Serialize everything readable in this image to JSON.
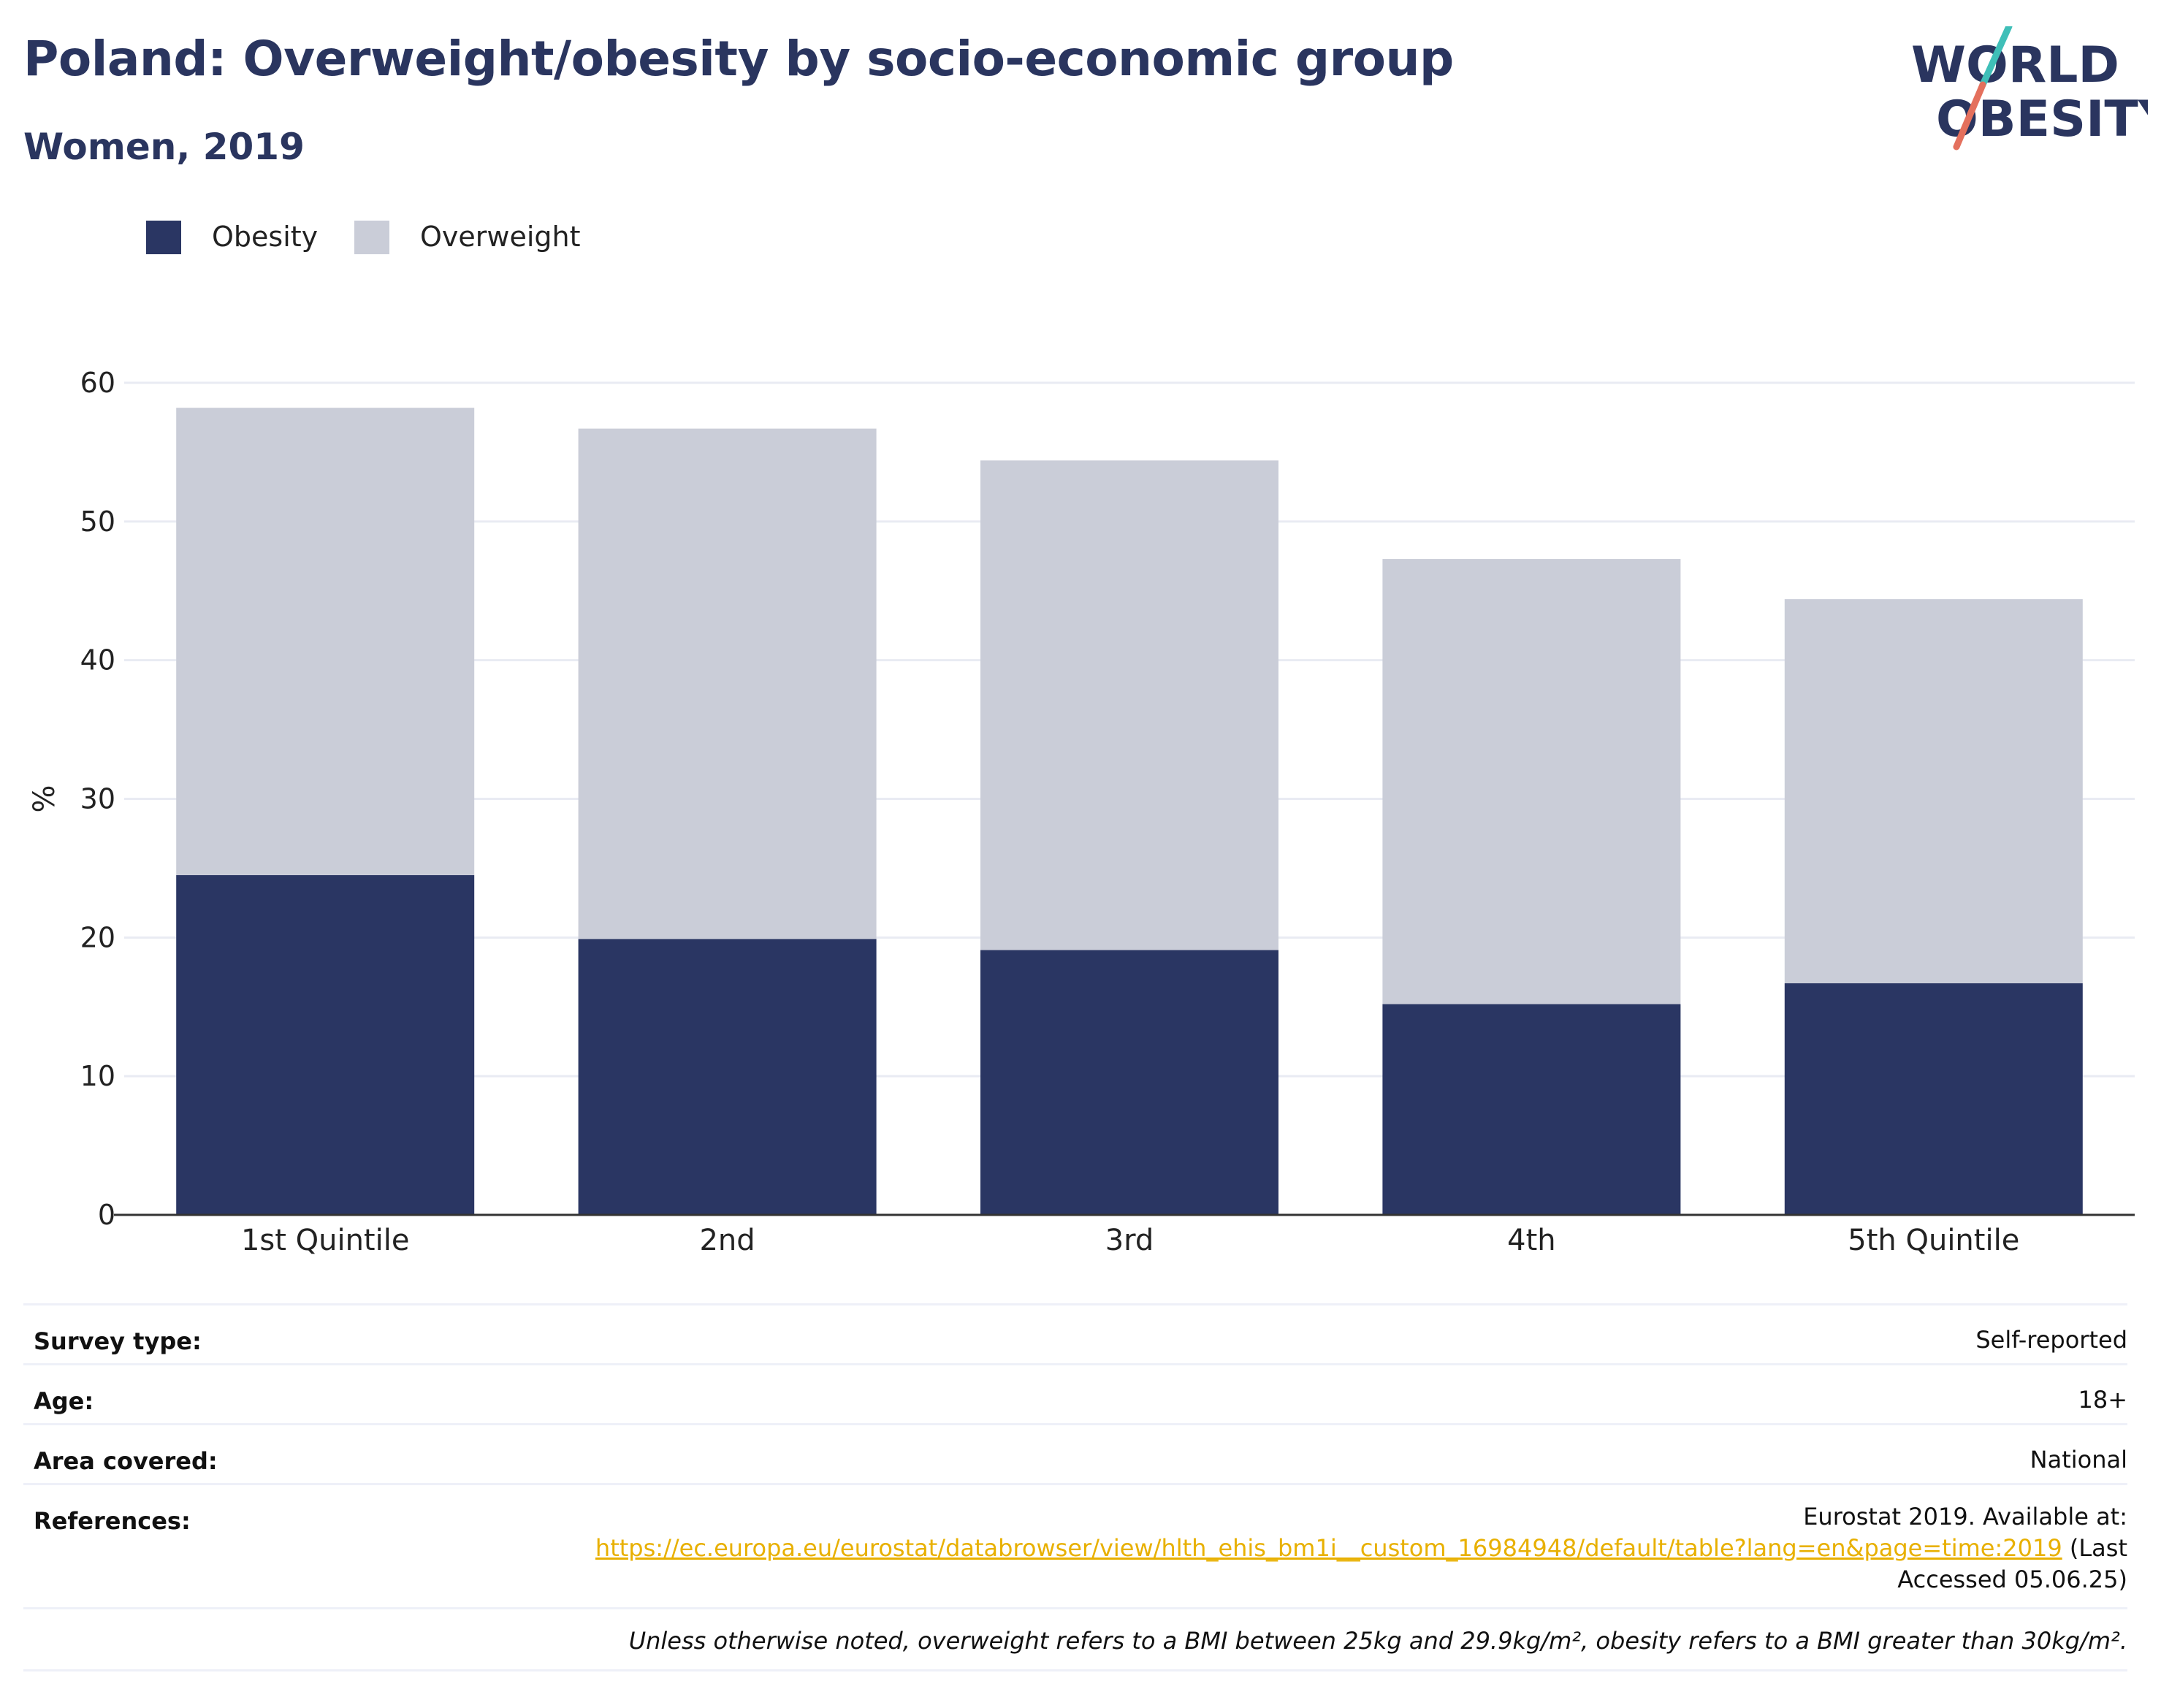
{
  "header": {
    "title": "Poland: Overweight/obesity by socio-economic group",
    "subtitle": "Women, 2019"
  },
  "logo": {
    "line1": "WORLD",
    "line2": "OBESITY"
  },
  "legend": [
    {
      "label": "Obesity",
      "color": "#2a3663"
    },
    {
      "label": "Overweight",
      "color": "#cacdd8"
    }
  ],
  "chart_data": {
    "type": "bar",
    "stacked": true,
    "categories": [
      "1st Quintile",
      "2nd",
      "3rd",
      "4th",
      "5th Quintile"
    ],
    "series": [
      {
        "name": "Obesity",
        "values": [
          24.5,
          19.9,
          19.1,
          15.2,
          16.7
        ],
        "color": "#2a3663"
      },
      {
        "name": "Overweight",
        "values": [
          33.7,
          36.8,
          35.3,
          32.1,
          27.7
        ],
        "color": "#cacdd8"
      }
    ],
    "totals": [
      58.2,
      56.7,
      54.4,
      47.3,
      44.4
    ],
    "ylabel": "%",
    "ylim": [
      0,
      60
    ],
    "yticks": [
      0,
      10,
      20,
      30,
      40,
      50,
      60
    ],
    "grid": true,
    "legend_position": "top-left"
  },
  "meta": {
    "survey_type": {
      "label": "Survey type:",
      "value": "Self-reported"
    },
    "age": {
      "label": "Age:",
      "value": "18+"
    },
    "area": {
      "label": "Area covered:",
      "value": "National"
    },
    "references": {
      "label": "References:",
      "text_before": "Eurostat 2019. Available at:",
      "link": "https://ec.europa.eu/eurostat/databrowser/view/hlth_ehis_bm1i__custom_16984948/default/table?lang=en&page=time:2019",
      "text_after_1": "(Last",
      "text_after_2": "Accessed 05.06.25)"
    },
    "note": "Unless otherwise noted, overweight refers to a BMI between 25kg and 29.9kg/m², obesity refers to a BMI greater than 30kg/m²."
  }
}
